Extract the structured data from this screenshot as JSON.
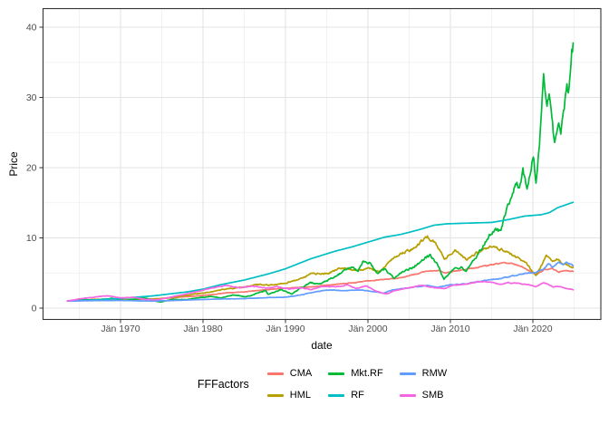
{
  "chart_data": {
    "type": "line",
    "title": "",
    "xlabel": "date",
    "ylabel": "Price",
    "legend_title": "FFFactors",
    "legend_position": "bottom",
    "grid": true,
    "x_domain_years": [
      1963.55,
      2024.95
    ],
    "ylim": [
      -1.6,
      42.6
    ],
    "y_ticks": [
      {
        "value": 0,
        "label": "0"
      },
      {
        "value": 10,
        "label": "10"
      },
      {
        "value": 20,
        "label": "20"
      },
      {
        "value": 30,
        "label": "30"
      },
      {
        "value": 40,
        "label": "40"
      }
    ],
    "y_minor_ticks": [
      5,
      15,
      25,
      35
    ],
    "x_ticks": [
      {
        "year": 1970,
        "label": "Jän 1970"
      },
      {
        "year": 1980,
        "label": "Jän 1980"
      },
      {
        "year": 1990,
        "label": "Jän 1990"
      },
      {
        "year": 2000,
        "label": "Jän 2000"
      },
      {
        "year": 2010,
        "label": "Jän 2010"
      },
      {
        "year": 2020,
        "label": "Jän 2020"
      }
    ],
    "x_minor_ticks": [
      1965,
      1975,
      1985,
      1995,
      2005,
      2015,
      2025
    ],
    "series": [
      {
        "name": "CMA",
        "color": "#F8766D",
        "noise": 0.01,
        "points": [
          [
            1963.55,
            1.0
          ],
          [
            1965,
            1.05
          ],
          [
            1967,
            1.1
          ],
          [
            1969,
            1.1
          ],
          [
            1971,
            1.2
          ],
          [
            1973,
            1.27
          ],
          [
            1975,
            1.35
          ],
          [
            1977,
            1.55
          ],
          [
            1979,
            1.7
          ],
          [
            1981,
            1.9
          ],
          [
            1983,
            2.2
          ],
          [
            1985,
            2.3
          ],
          [
            1987,
            2.55
          ],
          [
            1989,
            2.75
          ],
          [
            1991,
            2.9
          ],
          [
            1993,
            3.0
          ],
          [
            1996,
            3.4
          ],
          [
            1998,
            3.6
          ],
          [
            2000,
            3.9
          ],
          [
            2002,
            4.1
          ],
          [
            2003.7,
            4.3
          ],
          [
            2005,
            4.6
          ],
          [
            2007,
            5.2
          ],
          [
            2008.5,
            5.4
          ],
          [
            2009.5,
            5.0
          ],
          [
            2011,
            5.4
          ],
          [
            2013,
            5.7
          ],
          [
            2014.7,
            6.1
          ],
          [
            2016.4,
            6.5
          ],
          [
            2017.5,
            6.3
          ],
          [
            2018.5,
            6.0
          ],
          [
            2019.6,
            5.3
          ],
          [
            2020.4,
            4.8
          ],
          [
            2021.4,
            5.5
          ],
          [
            2022.3,
            5.7
          ],
          [
            2023.2,
            5.1
          ],
          [
            2023.8,
            5.4
          ],
          [
            2024.95,
            5.2
          ]
        ]
      },
      {
        "name": "HML",
        "color": "#B79F00",
        "noise": 0.018,
        "points": [
          [
            1963.55,
            1.0
          ],
          [
            1965,
            1.1
          ],
          [
            1967,
            1.25
          ],
          [
            1969,
            1.25
          ],
          [
            1971,
            1.2
          ],
          [
            1973,
            1.3
          ],
          [
            1975,
            1.35
          ],
          [
            1977,
            1.65
          ],
          [
            1979,
            2.0
          ],
          [
            1981,
            2.3
          ],
          [
            1983,
            2.8
          ],
          [
            1985,
            3.0
          ],
          [
            1986.5,
            3.4
          ],
          [
            1988,
            3.3
          ],
          [
            1990,
            3.6
          ],
          [
            1992,
            4.2
          ],
          [
            1993,
            4.9
          ],
          [
            1995,
            4.9
          ],
          [
            1997,
            5.8
          ],
          [
            1998.5,
            5.3
          ],
          [
            2000,
            5.6
          ],
          [
            2001.4,
            5.2
          ],
          [
            2003,
            7.0
          ],
          [
            2004,
            7.9
          ],
          [
            2005.5,
            8.4
          ],
          [
            2007.2,
            10.2
          ],
          [
            2008.2,
            9.2
          ],
          [
            2009.3,
            6.9
          ],
          [
            2010.6,
            8.3
          ],
          [
            2011.9,
            6.9
          ],
          [
            2013.2,
            7.9
          ],
          [
            2014.7,
            8.7
          ],
          [
            2016.4,
            8.3
          ],
          [
            2017.5,
            7.6
          ],
          [
            2018.3,
            7.2
          ],
          [
            2019.3,
            6.2
          ],
          [
            2020.4,
            4.5
          ],
          [
            2021.0,
            6.0
          ],
          [
            2021.6,
            7.5
          ],
          [
            2022.3,
            6.6
          ],
          [
            2023.0,
            7.0
          ],
          [
            2023.7,
            6.2
          ],
          [
            2024.3,
            6.2
          ],
          [
            2024.95,
            5.7
          ]
        ]
      },
      {
        "name": "Mkt.RF",
        "color": "#00BA38",
        "noise": 0.022,
        "points": [
          [
            1963.55,
            1.0
          ],
          [
            1965.5,
            1.25
          ],
          [
            1966.8,
            1.1
          ],
          [
            1968.9,
            1.4
          ],
          [
            1970.5,
            1.1
          ],
          [
            1972.9,
            1.45
          ],
          [
            1974.8,
            0.85
          ],
          [
            1976.2,
            1.25
          ],
          [
            1977.8,
            1.2
          ],
          [
            1979.5,
            1.45
          ],
          [
            1980.9,
            1.65
          ],
          [
            1982.3,
            1.45
          ],
          [
            1983.5,
            1.85
          ],
          [
            1984.5,
            1.75
          ],
          [
            1985.2,
            1.6
          ],
          [
            1986.5,
            2.1
          ],
          [
            1987.6,
            2.5
          ],
          [
            1987.9,
            1.95
          ],
          [
            1989.5,
            2.6
          ],
          [
            1990.8,
            2.0
          ],
          [
            1991.8,
            2.8
          ],
          [
            1993,
            3.6
          ],
          [
            1994.3,
            3.5
          ],
          [
            1995.5,
            4.2
          ],
          [
            1996.5,
            4.8
          ],
          [
            1997.5,
            5.6
          ],
          [
            1998.2,
            5.9
          ],
          [
            1998.8,
            5.1
          ],
          [
            1999.4,
            6.7
          ],
          [
            2000.2,
            6.5
          ],
          [
            2001.2,
            4.9
          ],
          [
            2002.1,
            5.6
          ],
          [
            2003.1,
            4.3
          ],
          [
            2004.3,
            5.2
          ],
          [
            2005.5,
            5.8
          ],
          [
            2006.6,
            6.9
          ],
          [
            2007.6,
            7.5
          ],
          [
            2008.5,
            6.0
          ],
          [
            2009.2,
            4.2
          ],
          [
            2010.2,
            5.3
          ],
          [
            2011.4,
            6.0
          ],
          [
            2011.9,
            5.3
          ],
          [
            2013,
            7.0
          ],
          [
            2014.2,
            9.3
          ],
          [
            2014.7,
            10.4
          ],
          [
            2015.7,
            11.2
          ],
          [
            2016.1,
            10.8
          ],
          [
            2016.5,
            12.8
          ],
          [
            2017.3,
            15.5
          ],
          [
            2018.0,
            18.0
          ],
          [
            2018.4,
            17.0
          ],
          [
            2018.8,
            19.4
          ],
          [
            2019.3,
            16.5
          ],
          [
            2020.1,
            21.9
          ],
          [
            2020.35,
            17.7
          ],
          [
            2020.9,
            25.5
          ],
          [
            2021.3,
            32.0
          ],
          [
            2021.7,
            28.5
          ],
          [
            2021.95,
            30.0
          ],
          [
            2022.6,
            23.6
          ],
          [
            2023.1,
            26.5
          ],
          [
            2023.35,
            25.0
          ],
          [
            2023.9,
            29.0
          ],
          [
            2024.15,
            31.5
          ],
          [
            2024.35,
            29.8
          ],
          [
            2024.6,
            34.5
          ],
          [
            2024.75,
            37.0
          ],
          [
            2024.82,
            36.0
          ],
          [
            2024.95,
            40.4
          ]
        ]
      },
      {
        "name": "RF",
        "color": "#00BFC4",
        "noise": 0,
        "points": [
          [
            1963.55,
            1.0
          ],
          [
            1966,
            1.12
          ],
          [
            1970,
            1.38
          ],
          [
            1974,
            1.75
          ],
          [
            1978,
            2.3
          ],
          [
            1980,
            2.7
          ],
          [
            1982,
            3.3
          ],
          [
            1985,
            4.0
          ],
          [
            1988,
            4.9
          ],
          [
            1990,
            5.6
          ],
          [
            1993,
            7.0
          ],
          [
            1996,
            8.1
          ],
          [
            1998,
            8.7
          ],
          [
            2000,
            9.4
          ],
          [
            2002,
            10.1
          ],
          [
            2004,
            10.5
          ],
          [
            2006,
            11.1
          ],
          [
            2008,
            11.8
          ],
          [
            2009.5,
            12.0
          ],
          [
            2012,
            12.1
          ],
          [
            2015,
            12.2
          ],
          [
            2017,
            12.6
          ],
          [
            2019,
            13.1
          ],
          [
            2021,
            13.3
          ],
          [
            2022,
            13.6
          ],
          [
            2023,
            14.3
          ],
          [
            2024.95,
            15.1
          ]
        ]
      },
      {
        "name": "RMW",
        "color": "#619CFF",
        "noise": 0.012,
        "points": [
          [
            1963.55,
            1.0
          ],
          [
            1966,
            1.05
          ],
          [
            1970,
            1.1
          ],
          [
            1974,
            1.0
          ],
          [
            1978,
            1.15
          ],
          [
            1982,
            1.3
          ],
          [
            1985,
            1.35
          ],
          [
            1988,
            1.5
          ],
          [
            1990,
            1.55
          ],
          [
            1992,
            1.9
          ],
          [
            1993,
            2.2
          ],
          [
            1995,
            2.6
          ],
          [
            1997,
            2.5
          ],
          [
            1999,
            2.6
          ],
          [
            2001,
            2.3
          ],
          [
            2001.8,
            2.1
          ],
          [
            2003,
            2.6
          ],
          [
            2005,
            2.9
          ],
          [
            2007,
            3.2
          ],
          [
            2008.5,
            3.0
          ],
          [
            2010,
            3.3
          ],
          [
            2012,
            3.5
          ],
          [
            2014,
            3.9
          ],
          [
            2016.4,
            4.3
          ],
          [
            2018,
            4.7
          ],
          [
            2019.4,
            5.0
          ],
          [
            2020.4,
            5.1
          ],
          [
            2021.2,
            5.5
          ],
          [
            2021.9,
            6.3
          ],
          [
            2022.4,
            5.9
          ],
          [
            2023.1,
            6.6
          ],
          [
            2023.6,
            6.2
          ],
          [
            2024.1,
            6.5
          ],
          [
            2024.95,
            6.0
          ]
        ]
      },
      {
        "name": "SMB",
        "color": "#F564E2",
        "noise": 0.014,
        "points": [
          [
            1963.55,
            1.0
          ],
          [
            1965,
            1.3
          ],
          [
            1967,
            1.6
          ],
          [
            1968.6,
            1.75
          ],
          [
            1970,
            1.45
          ],
          [
            1971.5,
            1.55
          ],
          [
            1973,
            1.25
          ],
          [
            1974.5,
            1.2
          ],
          [
            1976,
            1.55
          ],
          [
            1977.5,
            1.9
          ],
          [
            1979,
            2.3
          ],
          [
            1981,
            2.85
          ],
          [
            1983,
            3.2
          ],
          [
            1984.5,
            2.9
          ],
          [
            1986,
            3.1
          ],
          [
            1987.5,
            2.9
          ],
          [
            1989,
            3.0
          ],
          [
            1990.5,
            2.7
          ],
          [
            1992,
            2.9
          ],
          [
            1993,
            2.6
          ],
          [
            1994.5,
            3.1
          ],
          [
            1996,
            3.0
          ],
          [
            1997.5,
            3.3
          ],
          [
            1998.5,
            2.8
          ],
          [
            1999.8,
            3.2
          ],
          [
            2001,
            2.4
          ],
          [
            2002.3,
            2.0
          ],
          [
            2003.5,
            2.6
          ],
          [
            2005,
            2.9
          ],
          [
            2006.5,
            3.2
          ],
          [
            2008,
            2.9
          ],
          [
            2009.2,
            2.8
          ],
          [
            2010.5,
            3.3
          ],
          [
            2012,
            3.4
          ],
          [
            2013.5,
            3.8
          ],
          [
            2014.7,
            3.7
          ],
          [
            2016,
            3.4
          ],
          [
            2017,
            3.6
          ],
          [
            2018.5,
            3.5
          ],
          [
            2019.5,
            3.3
          ],
          [
            2020.4,
            3.1
          ],
          [
            2021.3,
            3.6
          ],
          [
            2021.8,
            3.4
          ],
          [
            2022.5,
            3.0
          ],
          [
            2023.3,
            3.1
          ],
          [
            2024.2,
            2.8
          ],
          [
            2024.95,
            2.55
          ]
        ]
      }
    ]
  }
}
